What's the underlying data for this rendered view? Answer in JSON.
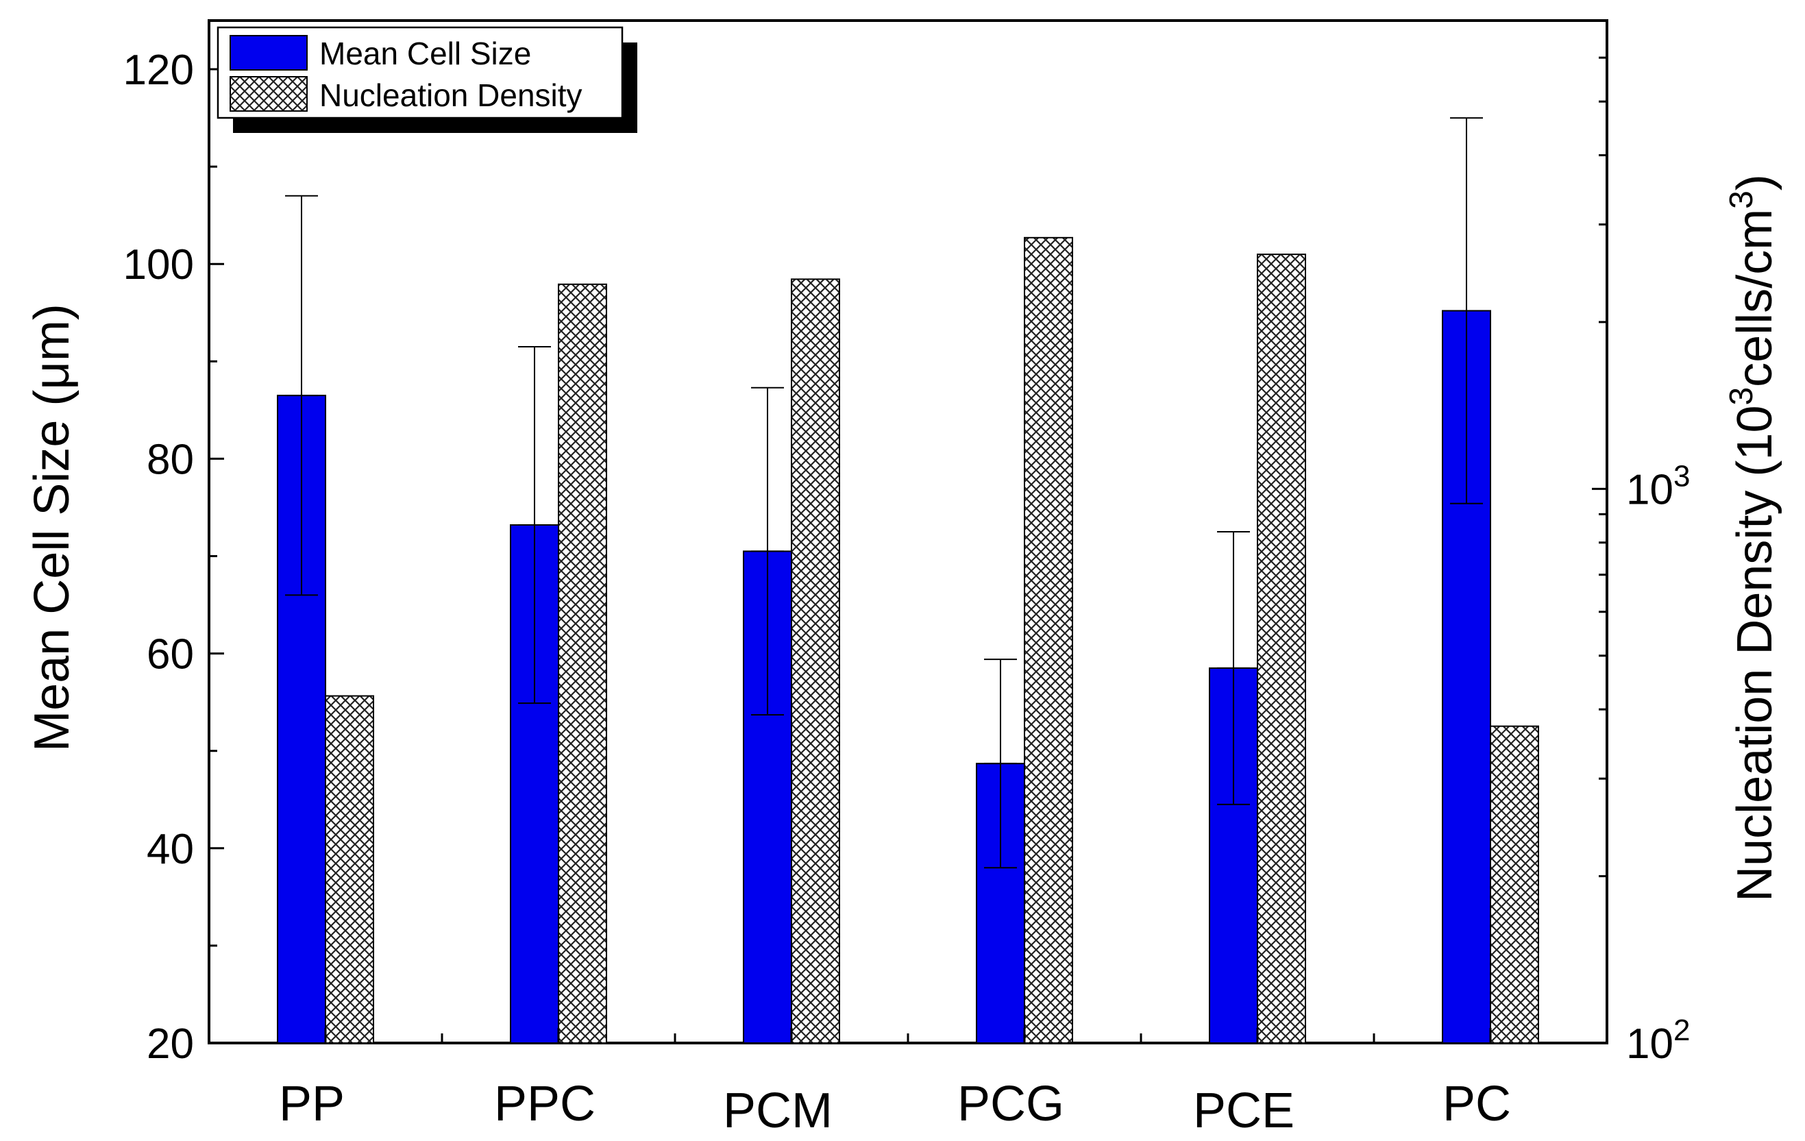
{
  "chart_data": {
    "type": "bar",
    "categories": [
      "PP",
      "PPC",
      "PCM",
      "PCG",
      "PCE",
      "PC"
    ],
    "series": [
      {
        "name": "Mean Cell Size",
        "axis": "left",
        "color": "#0000ee",
        "pattern": "solid",
        "values": [
          86.5,
          73.2,
          70.5,
          48.7,
          58.5,
          95.2
        ],
        "errors": [
          20.5,
          18.3,
          16.8,
          10.7,
          14.0,
          19.8
        ]
      },
      {
        "name": "Nucleation Density",
        "axis": "right",
        "color": "#8c8c8c",
        "pattern": "crosshatch",
        "values": [
          423,
          2340,
          2390,
          2840,
          2650,
          373
        ]
      }
    ],
    "y_left": {
      "label_main": "Mean Cell Size (",
      "label_unit": "μm",
      "label_end": ")",
      "ylim": [
        20,
        125
      ],
      "ticks": [
        20,
        40,
        60,
        80,
        100,
        120
      ],
      "tick_labels": [
        "20",
        "40",
        "60",
        "80",
        "100",
        "120"
      ]
    },
    "y_right": {
      "scale": "log",
      "label_main": "Nucleation Density (10",
      "label_sup1": "3",
      "label_mid": "cells/cm",
      "label_sup2": "3",
      "label_end": ")",
      "ylim": [
        100,
        7000
      ],
      "major_ticks": [
        100,
        1000
      ],
      "tick_base": "10",
      "tick_exponents": [
        "2",
        "3"
      ]
    },
    "legend": {
      "position": "top-left",
      "entries": [
        "Mean Cell Size",
        "Nucleation Density"
      ]
    }
  }
}
